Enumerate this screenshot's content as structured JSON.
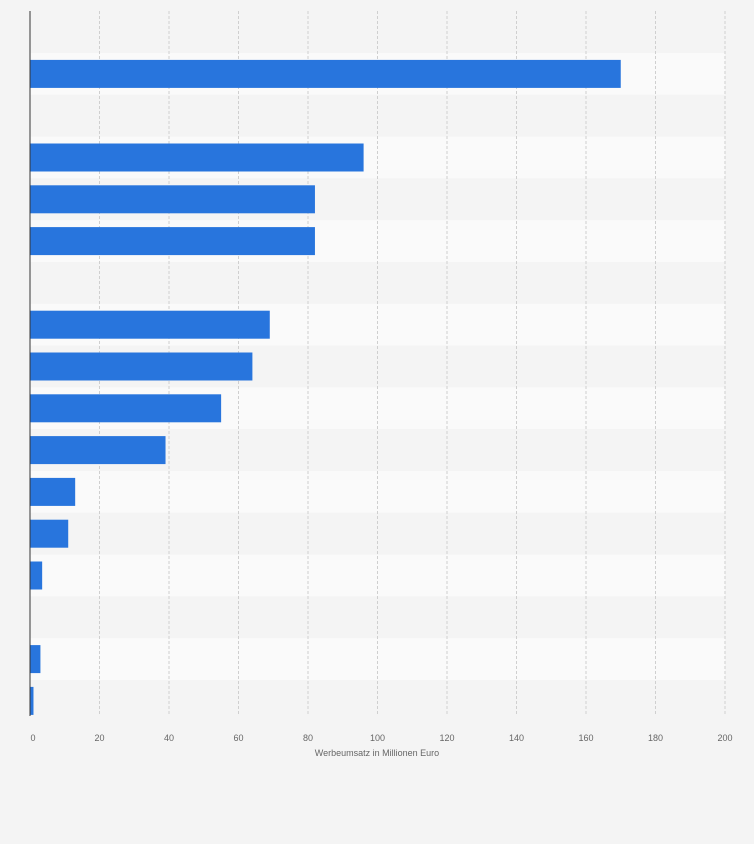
{
  "chart_data": {
    "type": "bar",
    "orientation": "horizontal",
    "title": "",
    "xlabel": "Werbeumsatz in Millionen Euro",
    "ylabel": "",
    "xlim": [
      0,
      200
    ],
    "x_ticks": [
      "0",
      "20",
      "40",
      "60",
      "80",
      "100",
      "120",
      "140",
      "160",
      "180",
      "200"
    ],
    "categories": [
      "",
      "",
      "",
      "",
      "",
      "",
      "",
      "",
      "",
      "",
      "",
      "",
      "",
      "",
      "",
      ""
    ],
    "values": [
      170,
      null,
      96,
      82,
      82,
      null,
      69,
      64,
      55,
      39,
      13,
      11,
      3.5,
      null,
      3,
      1
    ],
    "grid": true,
    "legend": "none",
    "bar_color": "#2875dd",
    "row_band_colors": [
      "#fafafa",
      "#f4f4f4"
    ],
    "gridline_color": "#cfcfcf",
    "axis_color": "#333333"
  }
}
